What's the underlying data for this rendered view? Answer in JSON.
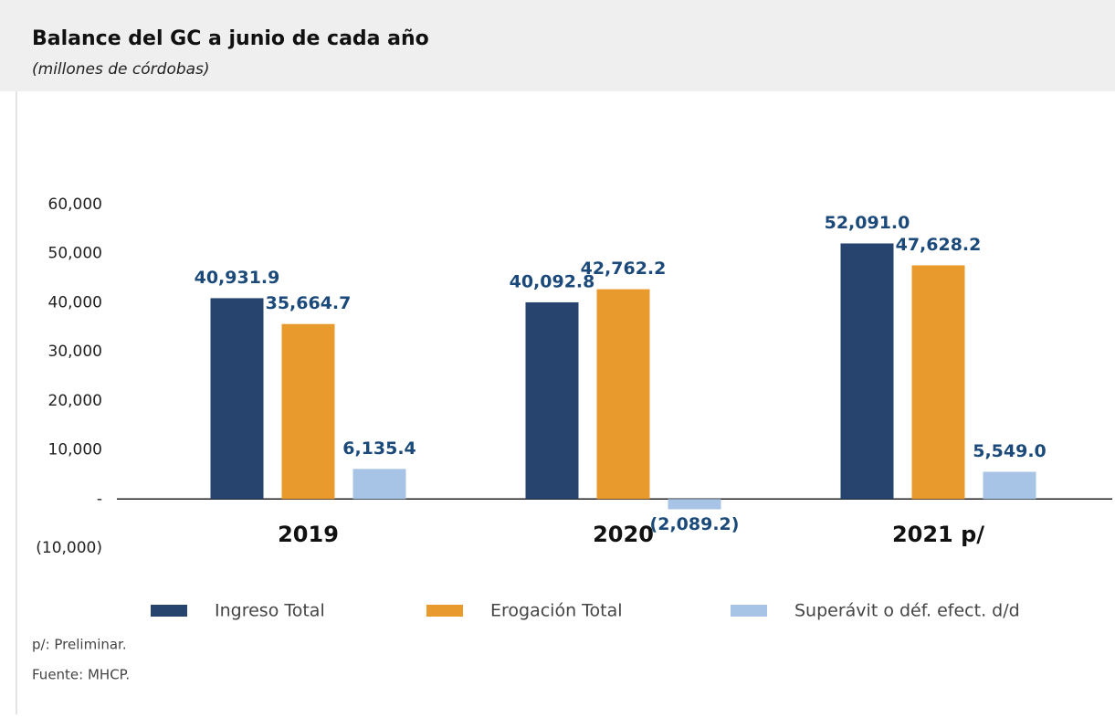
{
  "chart_data": {
    "type": "bar",
    "title": "Balance del GC a junio de cada año",
    "subtitle": "(millones de córdobas)",
    "categories": [
      "2019",
      "2020",
      "2021 p/"
    ],
    "series": [
      {
        "name": "Ingreso Total",
        "color": "#26446e",
        "values": [
          40931.9,
          40092.8,
          52091.0
        ],
        "value_labels": [
          "40,931.9",
          "40,092.8",
          "52,091.0"
        ]
      },
      {
        "name": "Erogación Total",
        "color": "#e99a2c",
        "values": [
          35664.7,
          42762.2,
          47628.2
        ],
        "value_labels": [
          "35,664.7",
          "42,762.2",
          "47,628.2"
        ]
      },
      {
        "name": "Superávit o déf. efect. d/d",
        "color": "#a7c3e6",
        "values": [
          6135.4,
          -2089.2,
          5549.0
        ],
        "value_labels": [
          "6,135.4",
          "(2,089.2)",
          "5,549.0"
        ]
      }
    ],
    "ylim": [
      -10000,
      60000
    ],
    "yticks": [
      {
        "value": -10000,
        "label": "(10,000)"
      },
      {
        "value": 0,
        "label": "-"
      },
      {
        "value": 10000,
        "label": "10,000"
      },
      {
        "value": 20000,
        "label": "20,000"
      },
      {
        "value": 30000,
        "label": "30,000"
      },
      {
        "value": 40000,
        "label": "40,000"
      },
      {
        "value": 50000,
        "label": "50,000"
      },
      {
        "value": 60000,
        "label": "60,000"
      }
    ],
    "grid": false,
    "notes": [
      "p/: Preliminar.",
      "Fuente: MHCP."
    ]
  }
}
